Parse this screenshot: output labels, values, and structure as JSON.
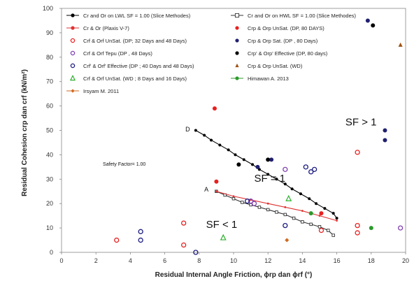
{
  "chart_data": {
    "type": "scatter",
    "xlabel": "Residual Internal Angle Friction, ϕrp dan ϕrf (°)",
    "ylabel": "Residual Cohesion crp dan crf (kN/m²)",
    "xlim": [
      0,
      20
    ],
    "ylim": [
      0,
      100
    ],
    "x_ticks": [
      0,
      2,
      4,
      6,
      8,
      10,
      12,
      14,
      16,
      18,
      20
    ],
    "y_ticks": [
      0,
      10,
      20,
      30,
      40,
      50,
      60,
      70,
      80,
      90,
      100
    ],
    "grid": false,
    "legend_position": "top, inside plot area",
    "series": [
      {
        "name": "Cr and Or on  LWL     SF = 1.00 (Slice Methodes)",
        "style": "line-filled-circle",
        "color": "#000000",
        "x": [
          7.8,
          8.3,
          8.7,
          9.2,
          9.7,
          10.1,
          10.6,
          11.1,
          11.5,
          12.0,
          12.5,
          13.0,
          13.4,
          13.9,
          14.4,
          14.8,
          15.3,
          15.8,
          16.0
        ],
        "y": [
          50,
          48,
          46,
          44,
          42,
          40,
          38,
          36,
          34,
          32,
          30,
          28,
          26,
          24,
          22,
          20,
          18,
          16,
          14
        ]
      },
      {
        "name": "Cr   and  Or on HWL     SF = 1.00 (Slice Methodes)",
        "style": "line-open-square",
        "color": "#333333",
        "x": [
          9.0,
          9.5,
          10.0,
          10.5,
          11.0,
          11.5,
          12.0,
          12.5,
          13.0,
          13.5,
          14.0,
          14.5,
          15.0,
          15.5,
          15.8
        ],
        "y": [
          25,
          23.5,
          22,
          20.5,
          19.5,
          18.5,
          17.5,
          16.5,
          15.5,
          14,
          12.5,
          11.5,
          10.5,
          9,
          7
        ]
      },
      {
        "name": "Cr & Or  (Plaxis V-7)",
        "style": "line-small-marker",
        "color": "#e03030",
        "x": [
          9.0,
          10.0,
          11.0,
          12.0,
          13.0,
          14.0,
          15.0,
          16.0
        ],
        "y": [
          25,
          23,
          21.5,
          20,
          18.5,
          17,
          15,
          13
        ]
      },
      {
        "name": "Crp & Orp UnSat. (DP, 80 DAYS)",
        "style": "filled-circle",
        "color": "#e82020",
        "x": [
          8.9,
          9.0,
          15.1
        ],
        "y": [
          59,
          29,
          16
        ]
      },
      {
        "name": "Crf & Orf  UnSat. (DP; 32 Days and 48 Days)",
        "style": "open-circle",
        "color": "#e82020",
        "x": [
          3.2,
          7.1,
          7.1,
          15.1,
          17.2,
          17.2,
          17.2
        ],
        "y": [
          5,
          12,
          3,
          9,
          41,
          11,
          8
        ]
      },
      {
        "name": "Crp & Orp Sat. (DP , 80 Days)",
        "style": "filled-circle",
        "color": "#202070",
        "x": [
          11.4,
          12.2,
          17.8,
          18.8,
          18.8
        ],
        "y": [
          35,
          38,
          95,
          50,
          46
        ]
      },
      {
        "name": "Crf & Orf Tepu (DP , 48 Days)",
        "style": "open-circle",
        "color": "#8040b0",
        "x": [
          11.0,
          11.2,
          13.0,
          19.7
        ],
        "y": [
          21,
          20,
          34,
          10
        ]
      },
      {
        "name": "Crp' & Orp' Effective  (DP, 80 days)",
        "style": "filled-circle",
        "color": "#000000",
        "x": [
          10.3,
          12.0,
          18.1
        ],
        "y": [
          36,
          38,
          93
        ]
      },
      {
        "name": "Crf' & Orf' Effective (DP ; 40 Days and 48 Days)",
        "style": "open-circle",
        "color": "#1c1c80",
        "x": [
          4.6,
          4.6,
          7.8,
          10.8,
          13.0,
          14.2,
          14.5,
          14.7
        ],
        "y": [
          8.5,
          5,
          0,
          21,
          11,
          35,
          33,
          34
        ]
      },
      {
        "name": "Crp & Orp UnSat. (WD)",
        "style": "filled-triangle",
        "color": "#a05010",
        "x": [
          19.7
        ],
        "y": [
          85
        ]
      },
      {
        "name": "Crf & Orf UnSat. (WD ; 8 Days and 16 Days)",
        "style": "open-triangle",
        "color": "#30b030",
        "x": [
          9.4,
          13.2
        ],
        "y": [
          6,
          22
        ]
      },
      {
        "name": "Himawan A. 2013",
        "style": "filled-circle-line",
        "color": "#2a9a2a",
        "x": [
          14.5,
          18.0
        ],
        "y": [
          16,
          10
        ]
      },
      {
        "name": "Irsyam  M. 2011",
        "style": "filled-diamond-line",
        "color": "#d06a20",
        "x": [
          13.1
        ],
        "y": [
          5
        ]
      }
    ],
    "annotations": [
      {
        "text": "SF > 1",
        "x": 16.5,
        "y": 52
      },
      {
        "text": "SF = 1",
        "x": 11.2,
        "y": 29
      },
      {
        "text": "SF < 1",
        "x": 8.4,
        "y": 10
      },
      {
        "text": "Safety Factor= 1.00",
        "x": 2.4,
        "y": 35.5
      },
      {
        "text": "D",
        "x": 7.2,
        "y": 49.5
      },
      {
        "text": "A",
        "x": 8.3,
        "y": 25
      }
    ]
  }
}
